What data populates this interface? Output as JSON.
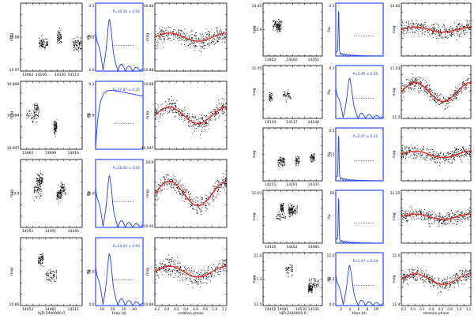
{
  "figure": {
    "left_block": {
      "rows": [
        {
          "lc": {
            "ylabel": "mag",
            "yticks": [
              "",
              "10.88",
              "10.97"
            ],
            "xticks": [
              "13962",
              "14160",
              "14320",
              "14513"
            ]
          },
          "ps": {
            "ann": "P=30.30 ± 0.56",
            "yl": "Pw",
            "ytop": "0.1",
            "ymid": "0.05",
            "ybot": "0.0"
          },
          "ph": {
            "ylabel": "mag",
            "ytop": "10.88",
            "ybot": "10.88"
          }
        },
        {
          "lc": {
            "ylabel": "mag",
            "yticks": [
              "10.894",
              "10.894",
              "10.947"
            ],
            "xticks": [
              "13965",
              "13999",
              "14016"
            ]
          },
          "ps": {
            "ann": "P=27.87 ± 0.35",
            "yl": "Pw",
            "ytop": "0.1",
            "ymid": "10.9",
            "ybot": ""
          },
          "ph": {
            "ylabel": "mag",
            "ytop": "10.88",
            "ybot": "10.947"
          }
        },
        {
          "lc": {
            "ylabel": "mag",
            "yticks": [
              "",
              "10.9",
              ""
            ],
            "xticks": [
              "14251",
              "14301",
              "14445"
            ]
          },
          "ps": {
            "ann": "P=28.06 ± 0.56",
            "yl": "Pw",
            "ytop": "",
            "ymid": "20.0",
            "ybot": ""
          },
          "ph": {
            "ylabel": "mag",
            "ytop": "10.9",
            "ybot": "10.92"
          }
        },
        {
          "lc": {
            "ylabel": "mag",
            "yticks": [
              "",
              "",
              "10.86"
            ],
            "xticks": [
              "14452",
              "14482",
              "14511"
            ]
          },
          "ps": {
            "ann": "P=26.50 ± 0.56",
            "yl": "Pw",
            "ytop": "",
            "ymid": "20.0",
            "ybot": "0.0"
          },
          "ph": {
            "ylabel": "mag",
            "ytop": "",
            "ybot": "10.86"
          }
        }
      ],
      "bottom_labels": {
        "lc": "HJD-2440000.0",
        "ps": "time (d)",
        "ph": "rotation phase"
      },
      "ps_xticks": [
        "10",
        "20",
        "30",
        "40"
      ],
      "ph_xticks": [
        "0.2",
        "0.0",
        "0.2",
        "0.4",
        "0.6",
        "0.8",
        "1.0",
        "1.2"
      ]
    },
    "right_block": {
      "rows": [
        {
          "lc": {
            "ylabel": "mag",
            "yticks": [
              "10.85",
              "10.9",
              ""
            ],
            "xticks": [
              "13952",
              "14160",
              "14351"
            ]
          },
          "ps": {
            "ann": "",
            "yl": "Pw",
            "ytop": "0.1",
            "ymid": "",
            "ybot": ""
          },
          "ph": {
            "ylabel": "mag",
            "ytop": "10.85",
            "ybot": ""
          }
        },
        {
          "lc": {
            "ylabel": "mag",
            "yticks": [
              "11.05",
              "",
              ""
            ],
            "xticks": [
              "14134",
              "14137",
              "14140"
            ]
          },
          "ps": {
            "ann": "P=2.45 ± 0.31",
            "yl": "Pw",
            "ytop": "0.1",
            "ymid": "",
            "ybot": ""
          },
          "ph": {
            "ylabel": "mag",
            "ytop": "11.03",
            "ybot": "11.2"
          }
        },
        {
          "lc": {
            "ylabel": "mag",
            "yticks": [
              "",
              "",
              ""
            ],
            "xticks": [
              "14251",
              "14291",
              "14337"
            ]
          },
          "ps": {
            "ann": "P=2.47 ± 0.31",
            "yl": "Pw",
            "ytop": "0.2",
            "ymid": ".51",
            "ybot": ""
          },
          "ph": {
            "ylabel": "mag",
            "ytop": "",
            "ybot": ""
          }
        },
        {
          "lc": {
            "ylabel": "mag",
            "yticks": [
              "11.03",
              "",
              ""
            ],
            "xticks": [
              "14435",
              "14462",
              "14485"
            ]
          },
          "ps": {
            "ann": "",
            "yl": "Pw",
            "ytop": "60",
            "ymid": "",
            "ybot": ""
          },
          "ph": {
            "ylabel": "mag",
            "ytop": "11.25",
            "ybot": ""
          }
        },
        {
          "lc": {
            "ylabel": "mag",
            "yticks": [
              "11.0",
              "11.3",
              "11.5"
            ],
            "xticks": [
              "14452",
              "14481",
              "14520",
              "14535"
            ]
          },
          "ps": {
            "ann": "P=2.47 ± 0.34",
            "yl": "Pw",
            "ytop": "12.0",
            "ymid": "10.2",
            "ybot": "0.0"
          },
          "ph": {
            "ylabel": "mag",
            "ytop": "11.0",
            "ybot": "11.4"
          }
        }
      ],
      "bottom_labels": {
        "lc": "HJD-2440000.0",
        "ps": "time (d)",
        "ph": "rotation phase"
      },
      "ps_xticks": [
        "2",
        "4",
        "6",
        "8",
        "10"
      ],
      "ph_xticks": [
        "0.2",
        "0.0",
        "0.2",
        "0.4",
        "0.6",
        "0.8",
        "1.0",
        "1.2"
      ]
    },
    "colors": {
      "periodogram": "#1a3cff",
      "fit": "#e8241c",
      "points": "#000000",
      "axes": "#000000"
    }
  }
}
